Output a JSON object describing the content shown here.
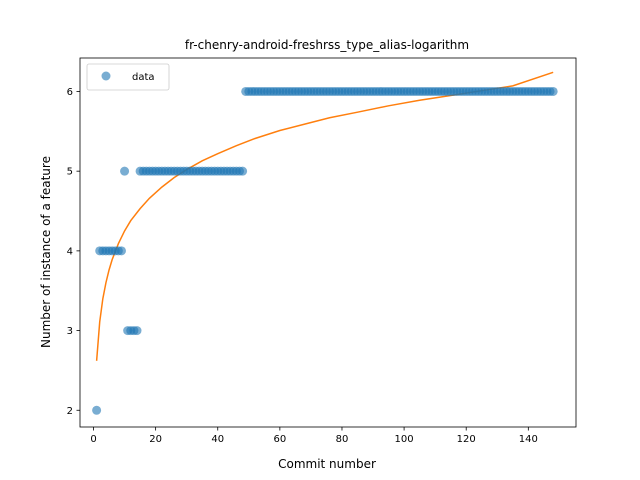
{
  "chart_data": {
    "type": "scatter",
    "title": "fr-chenry-android-freshrss_type_alias-logarithm",
    "xlabel": "Commit number",
    "ylabel": "Number of instance of a feature",
    "xlim": [
      -4.35,
      155.35
    ],
    "ylim": [
      1.79,
      6.42
    ],
    "xticks": [
      0,
      20,
      40,
      60,
      80,
      100,
      120,
      140
    ],
    "yticks": [
      2,
      3,
      4,
      5,
      6
    ],
    "grid": false,
    "legend": {
      "placement": "top-left",
      "entries": [
        "data"
      ]
    },
    "colors": {
      "data": "#1f77b4",
      "fit": "#ff7f0e"
    },
    "series": [
      {
        "name": "data",
        "kind": "scatter",
        "x": [
          1,
          2,
          3,
          4,
          5,
          6,
          7,
          8,
          9,
          10,
          11,
          12,
          13,
          14,
          15,
          16,
          17,
          18,
          19,
          20,
          21,
          22,
          23,
          24,
          25,
          26,
          27,
          28,
          29,
          30,
          31,
          32,
          33,
          34,
          35,
          36,
          37,
          38,
          39,
          40,
          41,
          42,
          43,
          44,
          45,
          46,
          47,
          48,
          49,
          50,
          51,
          52,
          53,
          54,
          55,
          56,
          57,
          58,
          59,
          60,
          61,
          62,
          63,
          64,
          65,
          66,
          67,
          68,
          69,
          70,
          71,
          72,
          73,
          74,
          75,
          76,
          77,
          78,
          79,
          80,
          81,
          82,
          83,
          84,
          85,
          86,
          87,
          88,
          89,
          90,
          91,
          92,
          93,
          94,
          95,
          96,
          97,
          98,
          99,
          100,
          101,
          102,
          103,
          104,
          105,
          106,
          107,
          108,
          109,
          110,
          111,
          112,
          113,
          114,
          115,
          116,
          117,
          118,
          119,
          120,
          121,
          122,
          123,
          124,
          125,
          126,
          127,
          128,
          129,
          130,
          131,
          132,
          133,
          134,
          135,
          136,
          137,
          138,
          139,
          140,
          141,
          142,
          143,
          144,
          145,
          146,
          147,
          148
        ],
        "y": [
          2,
          4,
          4,
          4,
          4,
          4,
          4,
          4,
          4,
          5,
          3,
          3,
          3,
          3,
          5,
          5,
          5,
          5,
          5,
          5,
          5,
          5,
          5,
          5,
          5,
          5,
          5,
          5,
          5,
          5,
          5,
          5,
          5,
          5,
          5,
          5,
          5,
          5,
          5,
          5,
          5,
          5,
          5,
          5,
          5,
          5,
          5,
          5,
          6,
          6,
          6,
          6,
          6,
          6,
          6,
          6,
          6,
          6,
          6,
          6,
          6,
          6,
          6,
          6,
          6,
          6,
          6,
          6,
          6,
          6,
          6,
          6,
          6,
          6,
          6,
          6,
          6,
          6,
          6,
          6,
          6,
          6,
          6,
          6,
          6,
          6,
          6,
          6,
          6,
          6,
          6,
          6,
          6,
          6,
          6,
          6,
          6,
          6,
          6,
          6,
          6,
          6,
          6,
          6,
          6,
          6,
          6,
          6,
          6,
          6,
          6,
          6,
          6,
          6,
          6,
          6,
          6,
          6,
          6,
          6,
          6,
          6,
          6,
          6,
          6,
          6,
          6,
          6,
          6,
          6,
          6,
          6,
          6,
          6,
          6,
          6,
          6,
          6,
          6,
          6,
          6,
          6,
          6,
          6,
          6,
          6,
          6,
          6
        ]
      },
      {
        "kind": "line",
        "x": [
          1,
          2,
          3,
          4,
          5,
          6,
          8,
          10,
          12,
          15,
          18,
          22,
          26,
          30,
          35,
          40,
          46,
          52,
          60,
          68,
          76,
          85,
          95,
          105,
          115,
          125,
          135,
          148
        ],
        "y": [
          2.62,
          3.11,
          3.4,
          3.6,
          3.76,
          3.89,
          4.09,
          4.25,
          4.38,
          4.53,
          4.66,
          4.8,
          4.92,
          5.02,
          5.13,
          5.22,
          5.32,
          5.41,
          5.51,
          5.59,
          5.67,
          5.74,
          5.82,
          5.89,
          5.95,
          6.01,
          6.07,
          6.24
        ]
      }
    ]
  }
}
